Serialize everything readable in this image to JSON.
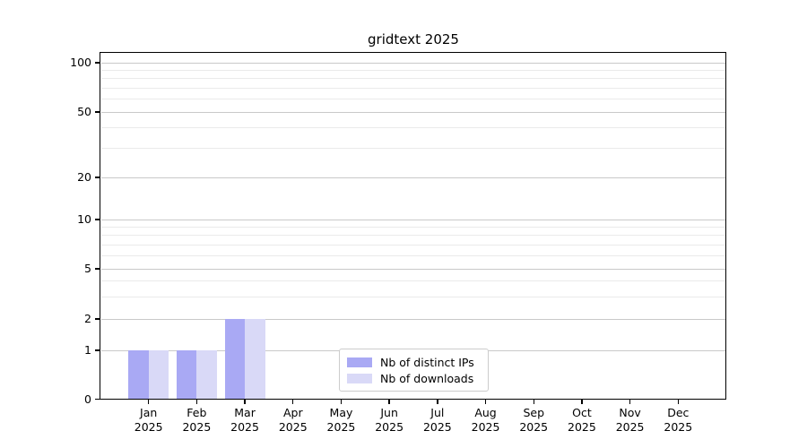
{
  "page": {
    "background": "#ffffff"
  },
  "chart_data": {
    "type": "bar",
    "title": "gridtext 2025",
    "categories": [
      "Jan",
      "Feb",
      "Mar",
      "Apr",
      "May",
      "Jun",
      "Jul",
      "Aug",
      "Sep",
      "Oct",
      "Nov",
      "Dec"
    ],
    "year": "2025",
    "series": [
      {
        "name": "Nb of distinct IPs",
        "color": "#a9a9f4",
        "values": [
          1,
          1,
          2,
          0,
          0,
          0,
          0,
          0,
          0,
          0,
          0,
          0
        ]
      },
      {
        "name": "Nb of downloads",
        "color": "#d9d9f7",
        "values": [
          1,
          1,
          2,
          0,
          0,
          0,
          0,
          0,
          0,
          0,
          0,
          0
        ]
      }
    ],
    "y_axis": {
      "scale": "symlog",
      "ticks": [
        0,
        1,
        2,
        5,
        10,
        20,
        50,
        100
      ],
      "minor_ticks": [
        3,
        4,
        6,
        7,
        8,
        9,
        30,
        40,
        60,
        70,
        80,
        90
      ],
      "range": [
        0,
        110
      ]
    },
    "x_axis": {
      "label_format": "month-over-year"
    },
    "grid": {
      "horizontal": true,
      "major_color": "#c9c9c9",
      "minor_color": "#eaeaea"
    },
    "legend": {
      "position": "inside-bottom-center",
      "entries": [
        "Nb of distinct IPs",
        "Nb of downloads"
      ]
    }
  }
}
